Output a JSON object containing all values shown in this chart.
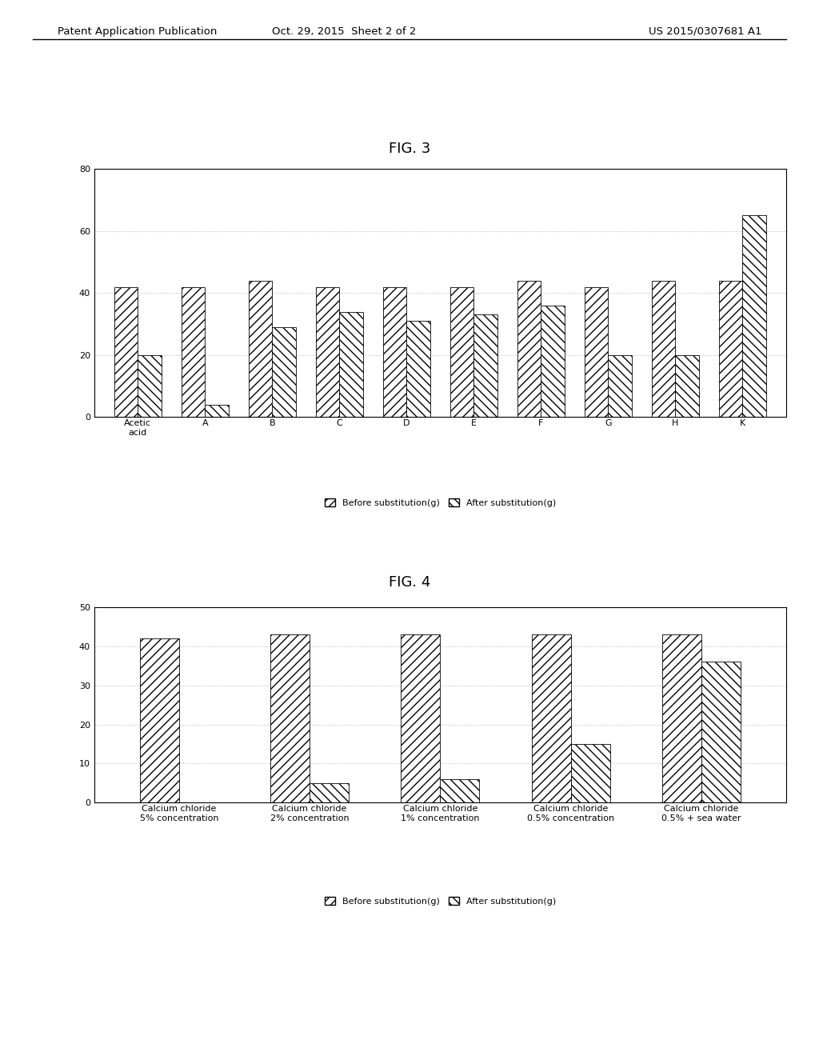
{
  "fig3": {
    "title": "FIG. 3",
    "categories": [
      "Acetic\nacid",
      "A",
      "B",
      "C",
      "D",
      "E",
      "F",
      "G",
      "H",
      "K"
    ],
    "before": [
      42,
      42,
      44,
      42,
      42,
      42,
      44,
      42,
      44,
      44
    ],
    "after": [
      20,
      4,
      29,
      34,
      31,
      33,
      36,
      20,
      20,
      65
    ],
    "ylim": [
      0,
      80
    ],
    "yticks": [
      0,
      20,
      40,
      60,
      80
    ],
    "legend1": "Before substitution(g)",
    "legend2": "After substitution(g)"
  },
  "fig4": {
    "title": "FIG. 4",
    "categories": [
      "Calcium chloride\n5% concentration",
      "Calcium chloride\n2% concentration",
      "Calcium chloride\n1% concentration",
      "Calcium chloride\n0.5% concentration",
      "Calcium chloride\n0.5% + sea water"
    ],
    "before": [
      42,
      43,
      43,
      43,
      43
    ],
    "after": [
      0,
      5,
      6,
      15,
      36
    ],
    "ylim": [
      0,
      50
    ],
    "yticks": [
      0,
      10,
      20,
      30,
      40,
      50
    ],
    "legend1": "Before substitution(g)",
    "legend2": "After substitution(g)"
  },
  "header_left": "Patent Application Publication",
  "header_center": "Oct. 29, 2015  Sheet 2 of 2",
  "header_right": "US 2015/0307681 A1",
  "bg_color": "#ffffff",
  "hatch1": "///",
  "hatch2": "\\\\\\",
  "edge_color": "#000000",
  "grid_color": "#aaaaaa"
}
